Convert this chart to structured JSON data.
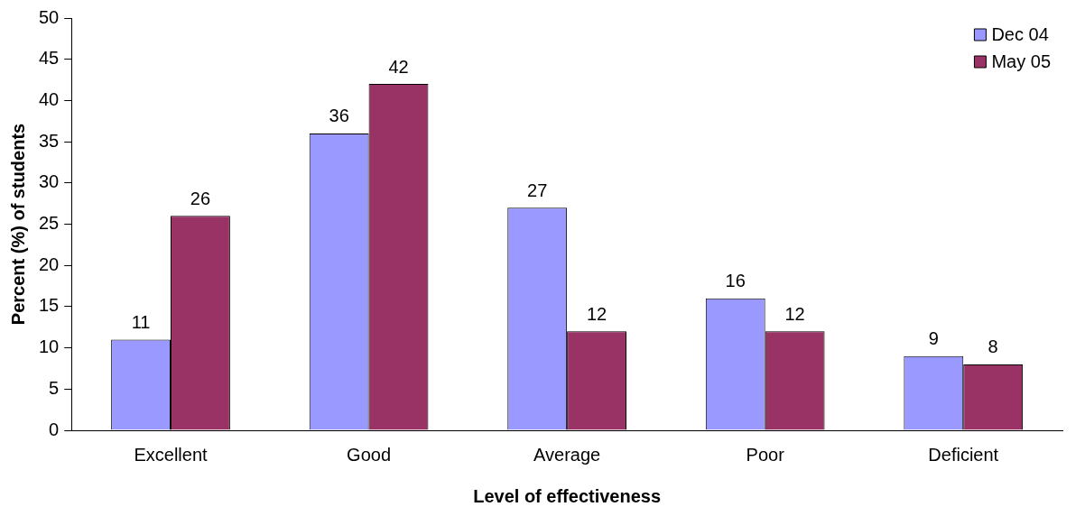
{
  "chart_data": {
    "type": "bar",
    "xlabel": "Level of effectiveness",
    "ylabel": "Percent (%) of students",
    "categories": [
      "Excellent",
      "Good",
      "Average",
      "Poor",
      "Deficient"
    ],
    "series": [
      {
        "name": "Dec 04",
        "color": "#9999ff",
        "values": [
          11,
          36,
          27,
          16,
          9
        ]
      },
      {
        "name": "May 05",
        "color": "#993366",
        "values": [
          26,
          42,
          12,
          12,
          8
        ]
      }
    ],
    "ylim": [
      0,
      50
    ],
    "yticks": [
      0,
      5,
      10,
      15,
      20,
      25,
      30,
      35,
      40,
      45,
      50
    ],
    "grid": false,
    "legend": "top right",
    "data_labels": true
  }
}
